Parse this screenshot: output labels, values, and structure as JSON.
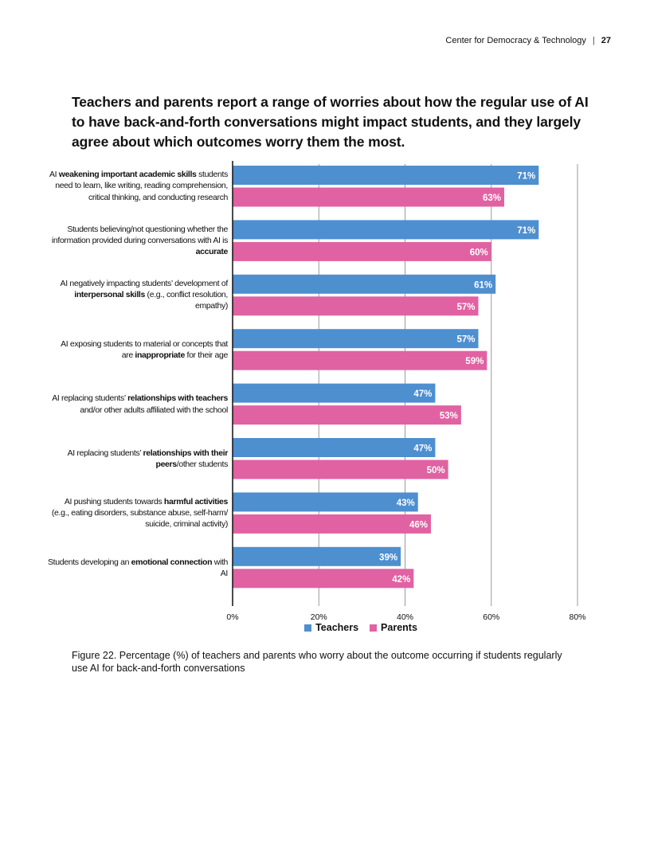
{
  "header": {
    "org": "Center for Democracy & Technology",
    "separator": "|",
    "page": "27"
  },
  "title": "Teachers and parents report a range of worries about how the regular use of AI to have back-and-forth conversations might impact students, and they largely agree about which outcomes worry them the most.",
  "caption": "Figure 22. Percentage (%) of teachers and parents who worry about the outcome occurring if students regularly use AI for back-and-forth conversations",
  "colors": {
    "teachers": "#4e8fcf",
    "parents": "#e062a2",
    "gridline": "#9a9a9a",
    "axis": "#111111"
  },
  "chart_data": {
    "type": "bar",
    "orientation": "horizontal",
    "title": "Teachers and parents report a range of worries about how the regular use of AI to have back-and-forth conversations might impact students, and they largely agree about which outcomes worry them the most.",
    "xlabel": "",
    "ylabel": "",
    "xlim": [
      0,
      80
    ],
    "ticks": [
      0,
      20,
      40,
      60,
      80
    ],
    "tick_labels": [
      "0%",
      "20%",
      "40%",
      "60%",
      "80%"
    ],
    "categories": [
      [
        {
          "t": "AI "
        },
        {
          "t": "weakening important academic skills",
          "b": true
        },
        {
          "t": " students need to learn, like writing, reading comprehension, critical thinking, and conducting research"
        }
      ],
      [
        {
          "t": "Students believing/not questioning whether the information provided during conversations with AI is "
        },
        {
          "t": "accurate",
          "b": true
        }
      ],
      [
        {
          "t": "AI negatively impacting students’ development of "
        },
        {
          "t": "interpersonal skills",
          "b": true
        },
        {
          "t": " (e.g., conflict resolution, empathy)"
        }
      ],
      [
        {
          "t": "AI exposing students to material or concepts that are "
        },
        {
          "t": "inappropriate",
          "b": true
        },
        {
          "t": " for their age"
        }
      ],
      [
        {
          "t": "AI replacing students’ "
        },
        {
          "t": "relationships with teachers",
          "b": true
        },
        {
          "t": " and/or other adults affiliated with the school"
        }
      ],
      [
        {
          "t": "AI replacing students’ "
        },
        {
          "t": "relationships with their peers",
          "b": true
        },
        {
          "t": "/other students"
        }
      ],
      [
        {
          "t": "AI pushing students towards "
        },
        {
          "t": "harmful activities",
          "b": true
        },
        {
          "t": " (e.g., eating disorders, substance abuse, self-harm/ suicide, criminal activity)"
        }
      ],
      [
        {
          "t": "Students developing an "
        },
        {
          "t": "emotional connection",
          "b": true
        },
        {
          "t": " with AI"
        }
      ]
    ],
    "series": [
      {
        "name": "Teachers",
        "values": [
          71,
          71,
          61,
          57,
          47,
          47,
          43,
          39
        ],
        "labels": [
          "71%",
          "71%",
          "61%",
          "57%",
          "47%",
          "47%",
          "43%",
          "39%"
        ]
      },
      {
        "name": "Parents",
        "values": [
          63,
          60,
          57,
          59,
          53,
          50,
          46,
          42
        ],
        "labels": [
          "63%",
          "60%",
          "57%",
          "59%",
          "53%",
          "50%",
          "46%",
          "42%"
        ]
      }
    ],
    "legend": {
      "position": "bottom-center",
      "items": [
        "Teachers",
        "Parents"
      ]
    },
    "grid": true
  }
}
